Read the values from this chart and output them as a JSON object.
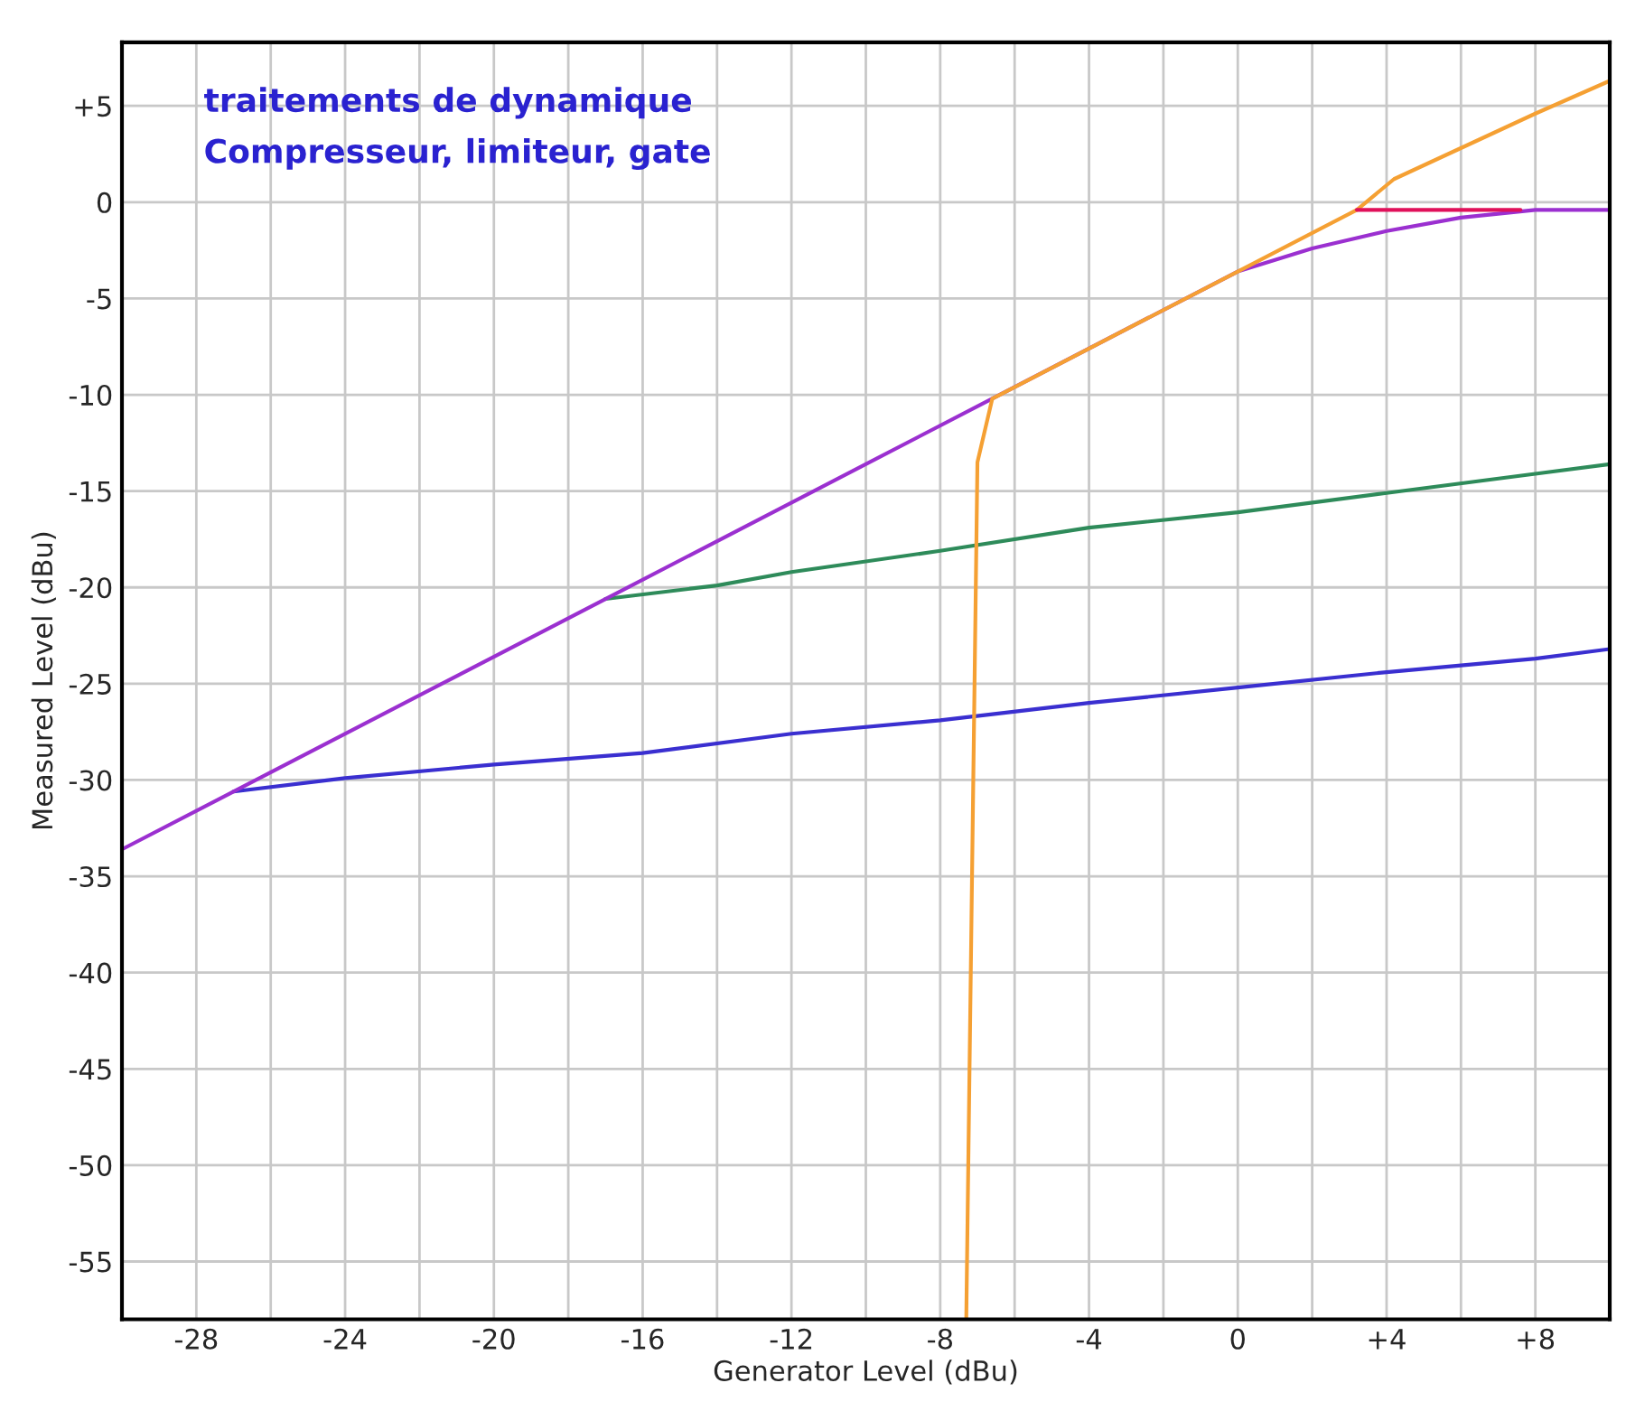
{
  "chart_data": {
    "type": "line",
    "title": "traitements de dynamique",
    "subtitle": "Compresseur, limiteur, gate",
    "xlabel": "Generator Level (dBu)",
    "ylabel": "Measured Level (dBu)",
    "xlim": [
      -30,
      10
    ],
    "ylim": [
      -58,
      8.3
    ],
    "xticks": [
      {
        "value": -30,
        "label": null
      },
      -28,
      {
        "value": -26,
        "label": null
      },
      {
        "value": -24,
        "label": "-24"
      },
      {
        "value": -22,
        "label": null
      },
      -20,
      {
        "value": -18,
        "label": null
      },
      -16,
      {
        "value": -14,
        "label": null
      },
      -12,
      {
        "value": -10,
        "label": null
      },
      -8,
      {
        "value": -6,
        "label": null
      },
      -4,
      {
        "value": -2,
        "label": null
      },
      0,
      {
        "value": 2,
        "label": null
      },
      {
        "value": 4,
        "label": "+4"
      },
      {
        "value": 6,
        "label": null
      },
      {
        "value": 8,
        "label": "+8"
      }
    ],
    "yticks": [
      -55,
      -50,
      -45,
      -40,
      -35,
      -30,
      -25,
      -20,
      -15,
      -10,
      -5,
      0,
      {
        "value": 5,
        "label": "+5"
      }
    ],
    "grid": true,
    "marker": "none",
    "line_style": "solid",
    "series": [
      {
        "color": "#3a2fd0",
        "x": [
          -27,
          -24,
          -20,
          -16,
          -12,
          -8,
          -4,
          0,
          4,
          8,
          10
        ],
        "values": [
          -30.6,
          -29.9,
          -29.2,
          -28.6,
          -27.6,
          -26.9,
          -26.0,
          -25.2,
          -24.4,
          -23.7,
          -23.2
        ]
      },
      {
        "color": "#2e8b5a",
        "x": [
          -17,
          -14,
          -12,
          -8,
          -4,
          0,
          4,
          8,
          10
        ],
        "values": [
          -20.6,
          -19.9,
          -19.2,
          -18.1,
          -16.9,
          -16.1,
          -15.1,
          -14.1,
          -13.6
        ]
      },
      {
        "color": "#9b30d0",
        "x": [
          -30,
          -17,
          -6.5,
          0,
          2,
          4,
          6,
          8,
          10
        ],
        "values": [
          -33.6,
          -20.6,
          -10.1,
          -3.6,
          -2.4,
          -1.5,
          -0.8,
          -0.4,
          -0.4
        ]
      },
      {
        "color": "#f5a033",
        "x": [
          -7.3,
          -7.0,
          -6.6,
          -4,
          0,
          3.2,
          4.2,
          8,
          10
        ],
        "values": [
          -58,
          -13.5,
          -10.2,
          -7.6,
          -3.6,
          -0.4,
          1.2,
          4.6,
          6.3
        ]
      },
      {
        "color": "#e0105a",
        "x": [
          3.2,
          7.6
        ],
        "values": [
          -0.4,
          -0.4
        ]
      }
    ]
  }
}
